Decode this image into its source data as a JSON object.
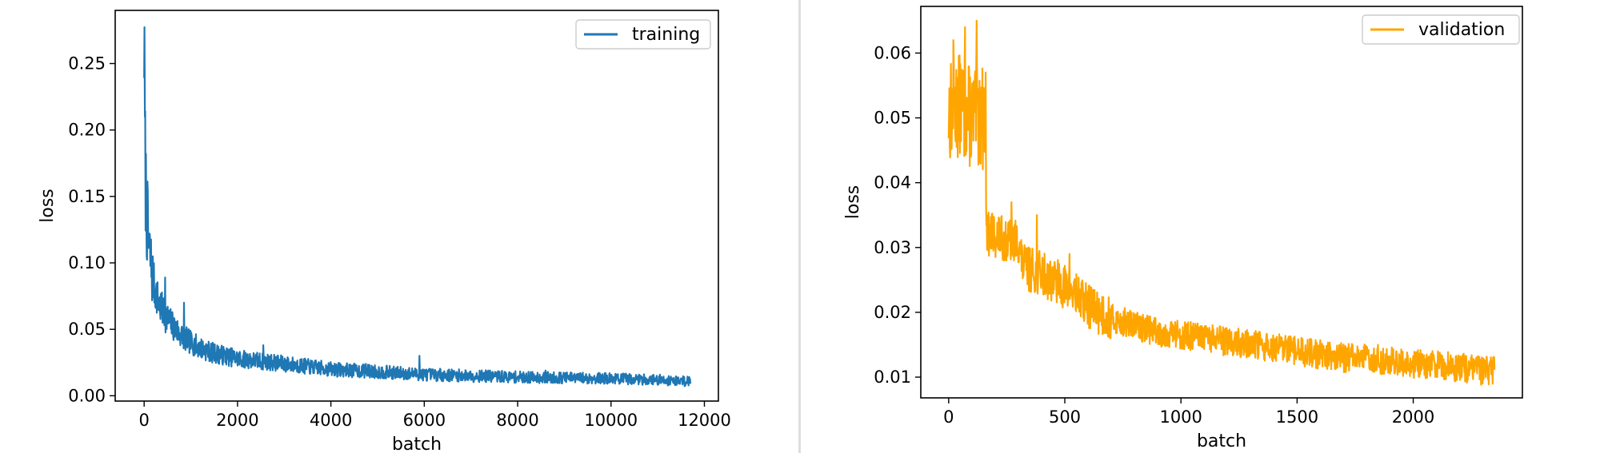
{
  "chart_data": [
    {
      "type": "line",
      "title": "",
      "xlabel": "batch",
      "ylabel": "loss",
      "xlim": [
        -620,
        12300
      ],
      "ylim": [
        -0.004,
        0.29
      ],
      "xticks": [
        0,
        2000,
        4000,
        6000,
        8000,
        10000,
        12000
      ],
      "xtick_labels": [
        "0",
        "2000",
        "4000",
        "6000",
        "8000",
        "10000",
        "12000"
      ],
      "yticks": [
        0.0,
        0.05,
        0.1,
        0.15,
        0.2,
        0.25
      ],
      "ytick_labels": [
        "0.00",
        "0.05",
        "0.10",
        "0.15",
        "0.20",
        "0.25"
      ],
      "grid": false,
      "legend": "top-right",
      "color": "#1f77b4",
      "series": [
        {
          "name": "training",
          "x": [
            0,
            10,
            25,
            50,
            100,
            150,
            200,
            300,
            400,
            500,
            600,
            700,
            800,
            1000,
            1200,
            1500,
            2000,
            2500,
            3000,
            3500,
            4000,
            4500,
            5000,
            5500,
            6000,
            7000,
            8000,
            9000,
            10000,
            11000,
            11700
          ],
          "y": [
            0.276,
            0.215,
            0.17,
            0.14,
            0.11,
            0.098,
            0.085,
            0.071,
            0.063,
            0.058,
            0.053,
            0.049,
            0.045,
            0.04,
            0.036,
            0.032,
            0.028,
            0.026,
            0.024,
            0.022,
            0.02,
            0.019,
            0.018,
            0.017,
            0.016,
            0.015,
            0.014,
            0.0135,
            0.013,
            0.012,
            0.011
          ],
          "spikes": [
            [
              450,
              0.089
            ],
            [
              850,
              0.07
            ],
            [
              2550,
              0.038
            ],
            [
              5900,
              0.03
            ],
            [
              3450,
              0.027
            ],
            [
              4750,
              0.024
            ],
            [
              8600,
              0.019
            ]
          ]
        }
      ]
    },
    {
      "type": "line",
      "title": "",
      "xlabel": "batch",
      "ylabel": "loss",
      "xlim": [
        -120,
        2470
      ],
      "ylim": [
        0.0068,
        0.0672
      ],
      "xticks": [
        0,
        500,
        1000,
        1500,
        2000
      ],
      "xtick_labels": [
        "0",
        "500",
        "1000",
        "1500",
        "2000"
      ],
      "yticks": [
        0.01,
        0.02,
        0.03,
        0.04,
        0.05,
        0.06
      ],
      "ytick_labels": [
        "0.01",
        "0.02",
        "0.03",
        "0.04",
        "0.05",
        "0.06"
      ],
      "grid": false,
      "legend": "top-right",
      "color": "#ffa500",
      "series": [
        {
          "name": "validation",
          "x": [
            0,
            50,
            100,
            155,
            165,
            200,
            250,
            300,
            320,
            400,
            450,
            500,
            600,
            700,
            800,
            900,
            1000,
            1100,
            1200,
            1300,
            1400,
            1500,
            1600,
            1700,
            1800,
            1900,
            2000,
            2100,
            2200,
            2300,
            2350
          ],
          "y": [
            0.051,
            0.052,
            0.05,
            0.05,
            0.032,
            0.032,
            0.031,
            0.031,
            0.027,
            0.026,
            0.025,
            0.024,
            0.021,
            0.019,
            0.018,
            0.017,
            0.0165,
            0.016,
            0.0155,
            0.015,
            0.0145,
            0.014,
            0.0135,
            0.013,
            0.013,
            0.0125,
            0.012,
            0.012,
            0.0115,
            0.011,
            0.011
          ],
          "spikes": [
            [
              120,
              0.065
            ],
            [
              20,
              0.062
            ],
            [
              70,
              0.064
            ],
            [
              160,
              0.057
            ],
            [
              270,
              0.037
            ],
            [
              380,
              0.035
            ],
            [
              520,
              0.029
            ]
          ]
        }
      ]
    }
  ]
}
